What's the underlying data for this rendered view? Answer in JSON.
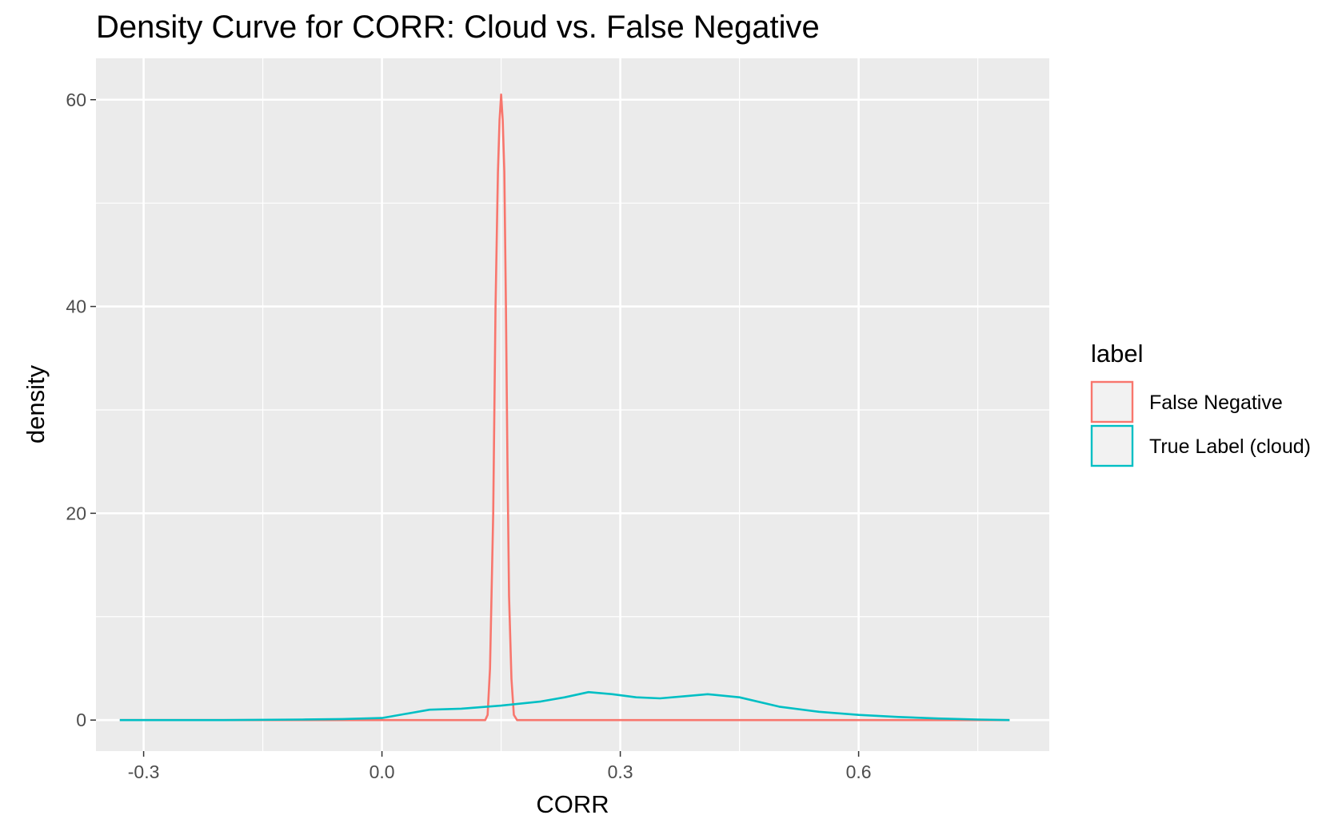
{
  "chart_data": {
    "type": "line",
    "title": "Density Curve for CORR: Cloud vs. False Negative",
    "xlabel": "CORR",
    "ylabel": "density",
    "xlim": [
      -0.36,
      0.84
    ],
    "ylim": [
      -3,
      64
    ],
    "x_ticks": [
      "-0.3",
      "0.0",
      "0.3",
      "0.6"
    ],
    "x_tick_values": [
      -0.3,
      0.0,
      0.3,
      0.6
    ],
    "y_ticks": [
      "0",
      "20",
      "40",
      "60"
    ],
    "y_tick_values": [
      0,
      20,
      40,
      60
    ],
    "grid": true,
    "legend": {
      "title": "label",
      "placement": "right"
    },
    "series": [
      {
        "name": "False Negative",
        "color": "#F8766D",
        "x": [
          -0.33,
          0.13,
          0.133,
          0.136,
          0.14,
          0.143,
          0.146,
          0.148,
          0.15,
          0.152,
          0.154,
          0.156,
          0.158,
          0.16,
          0.163,
          0.166,
          0.17,
          0.79
        ],
        "y": [
          0,
          0,
          0.5,
          5,
          20,
          40,
          53,
          58,
          60.5,
          58,
          53,
          40,
          25,
          12,
          4,
          0.5,
          0,
          0
        ]
      },
      {
        "name": "True Label (cloud)",
        "color": "#00BFC4",
        "x": [
          -0.33,
          -0.2,
          -0.1,
          -0.05,
          0.0,
          0.03,
          0.06,
          0.1,
          0.15,
          0.2,
          0.23,
          0.26,
          0.29,
          0.32,
          0.35,
          0.38,
          0.41,
          0.45,
          0.5,
          0.55,
          0.6,
          0.65,
          0.7,
          0.75,
          0.79
        ],
        "y": [
          0,
          0,
          0.05,
          0.1,
          0.2,
          0.6,
          1.0,
          1.1,
          1.4,
          1.8,
          2.2,
          2.7,
          2.5,
          2.2,
          2.1,
          2.3,
          2.5,
          2.2,
          1.3,
          0.8,
          0.5,
          0.3,
          0.15,
          0.05,
          0
        ]
      }
    ]
  }
}
